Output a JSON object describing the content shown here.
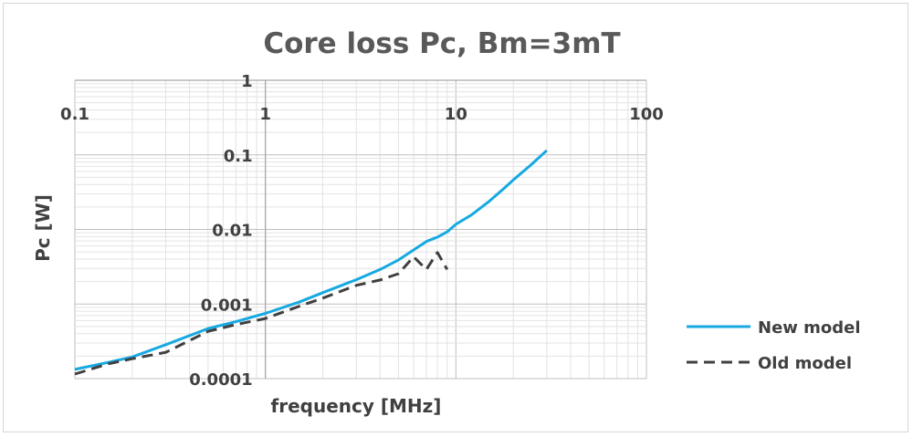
{
  "chart_data": {
    "type": "line",
    "title": "Core loss Pc, Bm=3mT",
    "xlabel": "frequency  [MHz]",
    "ylabel": "Pc [W]",
    "x_scale": "log",
    "y_scale": "log",
    "xlim": [
      0.1,
      100
    ],
    "ylim": [
      0.0001,
      1
    ],
    "x_ticks": [
      "0.1",
      "1",
      "10",
      "100"
    ],
    "y_ticks": [
      "1",
      "0.1",
      "0.01",
      "0.001",
      "0.0001"
    ],
    "grid": true,
    "legend_position": "right",
    "series": [
      {
        "name": "New model",
        "color": "#17a9e1",
        "style": "solid",
        "x": [
          0.1,
          0.15,
          0.2,
          0.3,
          0.5,
          0.7,
          1,
          1.5,
          2,
          3,
          4,
          5,
          6,
          7,
          8,
          9,
          10,
          12,
          15,
          18,
          20,
          25,
          30
        ],
        "y": [
          0.000133,
          0.000165,
          0.000195,
          0.000285,
          0.00047,
          0.00058,
          0.00075,
          0.00106,
          0.00142,
          0.00212,
          0.0029,
          0.0039,
          0.0053,
          0.0069,
          0.0079,
          0.0093,
          0.0117,
          0.0155,
          0.024,
          0.036,
          0.046,
          0.075,
          0.115
        ]
      },
      {
        "name": "Old model",
        "color": "#404040",
        "style": "dashed",
        "x": [
          0.1,
          0.15,
          0.2,
          0.3,
          0.5,
          0.7,
          1,
          1.5,
          2,
          3,
          4,
          5,
          6,
          7,
          8,
          9
        ],
        "y": [
          0.000115,
          0.000158,
          0.000185,
          0.000225,
          0.00043,
          0.00053,
          0.00064,
          0.00093,
          0.0012,
          0.00178,
          0.0021,
          0.00255,
          0.0043,
          0.0029,
          0.0049,
          0.0029
        ]
      }
    ]
  }
}
